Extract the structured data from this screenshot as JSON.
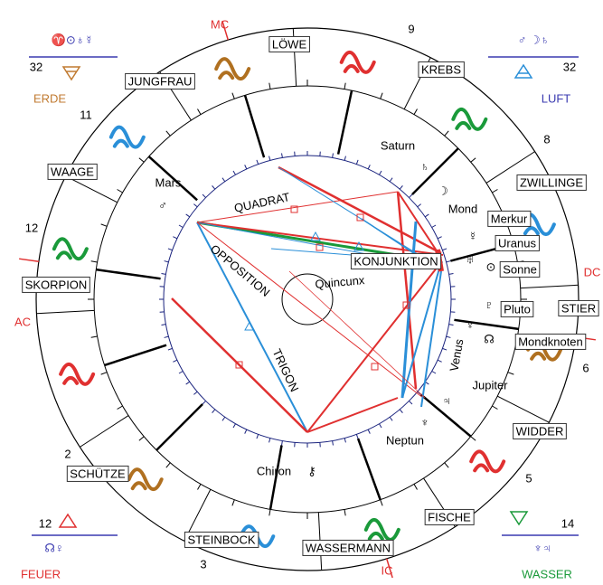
{
  "signs": [
    "LÖWE",
    "KREBS",
    "ZWILLINGE",
    "STIER",
    "WIDDER",
    "FISCHE",
    "WASSERMANN",
    "STEINBOCK",
    "SCHÜTZE",
    "SKORPION",
    "WAAGE",
    "JUNGFRAU"
  ],
  "houses": [
    9,
    8,
    6,
    5,
    3,
    2,
    12,
    11
  ],
  "axes": [
    "MC",
    "DC",
    "AC",
    "IC"
  ],
  "elements": [
    {
      "name": "ERDE",
      "count": 32,
      "planets": "♈⊙♁☿"
    },
    {
      "name": "LUFT",
      "count": 32,
      "planets": "♂ ☽♄"
    },
    {
      "name": "FEUER",
      "count": 12,
      "planets": "☊♀"
    },
    {
      "name": "WASSER",
      "count": 14,
      "planets": "♆♃"
    }
  ],
  "planets": [
    {
      "name": "Saturn",
      "symbol": "♄"
    },
    {
      "name": "Mond",
      "symbol": "☽"
    },
    {
      "name": "Merkur",
      "symbol": "☿"
    },
    {
      "name": "Uranus",
      "symbol": "♅"
    },
    {
      "name": "Sonne",
      "symbol": "⊙"
    },
    {
      "name": "Pluto",
      "symbol": "♇"
    },
    {
      "name": "Mondknoten",
      "symbol": "☊"
    },
    {
      "name": "Venus",
      "symbol": "♀"
    },
    {
      "name": "Jupiter",
      "symbol": "♃"
    },
    {
      "name": "Neptun",
      "symbol": "♆"
    },
    {
      "name": "Chiron",
      "symbol": "⚷"
    },
    {
      "name": "Mars",
      "symbol": "♂"
    }
  ],
  "aspects": [
    "QUADRAT",
    "OPPOSITION",
    "TRIGON",
    "KONJUNKTION",
    "Quincunx"
  ]
}
